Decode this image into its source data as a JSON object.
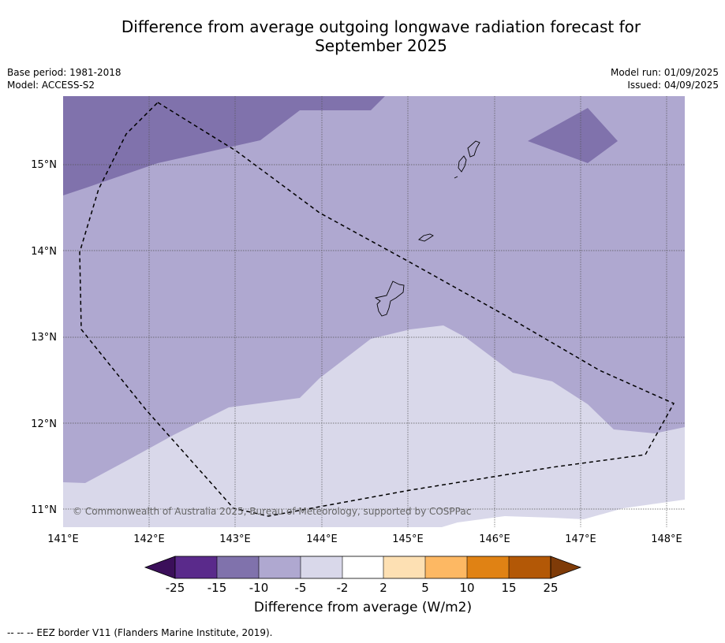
{
  "title_line1": "Difference from average outgoing longwave radiation forecast for",
  "title_line2": "September 2025",
  "base_period": "Base period: 1981-2018",
  "model": "Model: ACCESS-S2",
  "model_run": "Model run: 01/09/2025",
  "issued": "Issued: 04/09/2025",
  "copyright": "© Commonwealth of Australia 2025, Bureau of Meteorology, supported by COSPPac",
  "lon_labels": [
    "141°E",
    "142°E",
    "143°E",
    "144°E",
    "145°E",
    "146°E",
    "147°E",
    "148°E"
  ],
  "lat_labels": [
    "15°N",
    "14°N",
    "13°N",
    "12°N",
    "11°N"
  ],
  "colorbar": {
    "title": "Difference from average (W/m2)",
    "ticks": [
      "-25",
      "-15",
      "-10",
      "-5",
      "-2",
      "2",
      "5",
      "10",
      "15",
      "25"
    ],
    "colors": [
      "#3b0f5a",
      "#5a2a8b",
      "#8072ac",
      "#afa8d0",
      "#d9d8ea",
      "#ffffff",
      "#fde0b3",
      "#fdb863",
      "#e08214",
      "#b35806",
      "#7f3b08"
    ]
  },
  "legend_note": "-- -- -- EEZ border V11 (Flanders Marine Institute, 2019).",
  "colors": {
    "band_minus10_to_minus5": "#afa8d0",
    "band_minus15_to_minus10": "#8072ac",
    "band_minus5_to_minus2": "#d9d8ea"
  }
}
